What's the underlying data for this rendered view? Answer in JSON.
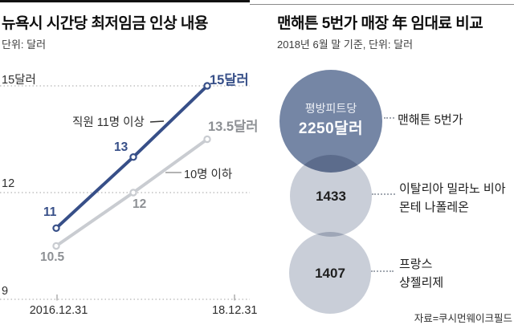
{
  "source": "자료=쿠시먼웨이크필드",
  "chart_data": [
    {
      "type": "line",
      "title": "뉴욕시 시간당 최저임금 인상 내용",
      "subtitle": "단위: 달러",
      "unit": "달러",
      "x_ticks": [
        "2016.12.31",
        "18.12.31"
      ],
      "ylim": [
        9,
        15
      ],
      "grid": "dotted-horizontal",
      "yticks": [
        {
          "value": 15,
          "label": "15달러"
        },
        {
          "value": 12,
          "label": "12"
        },
        {
          "value": 9,
          "label": "9"
        }
      ],
      "series": [
        {
          "name": "직원 11명 이상",
          "color": "#374f88",
          "values": [
            11,
            13,
            15
          ],
          "point_labels": [
            "11",
            "13",
            "15달러"
          ]
        },
        {
          "name": "10명 이하",
          "color": "#c9ccd1",
          "values": [
            10.5,
            12,
            13.5
          ],
          "point_labels": [
            "10.5",
            "12",
            "13.5달러"
          ]
        }
      ]
    },
    {
      "type": "bubble",
      "title": "맨해튼 5번가 매장 年 임대료 비교",
      "subtitle": "2018년 6월 말 기준, 단위: 달러",
      "bubbles": [
        {
          "value": 2250,
          "value_prefix": "평방피트당",
          "value_label": "2250달러",
          "color": "#7586a5",
          "label_lines": [
            "맨해튼 5번가"
          ]
        },
        {
          "value": 1433,
          "value_label": "1433",
          "color": "#c9ced8",
          "label_lines": [
            "이탈리아 밀라노 비아",
            "몬테 나폴레온"
          ]
        },
        {
          "value": 1407,
          "value_label": "1407",
          "color": "#c9ced8",
          "label_lines": [
            "프랑스",
            "샹젤리제"
          ]
        }
      ],
      "legend_position": "right",
      "source": "자료=쿠시먼웨이크필드"
    }
  ]
}
